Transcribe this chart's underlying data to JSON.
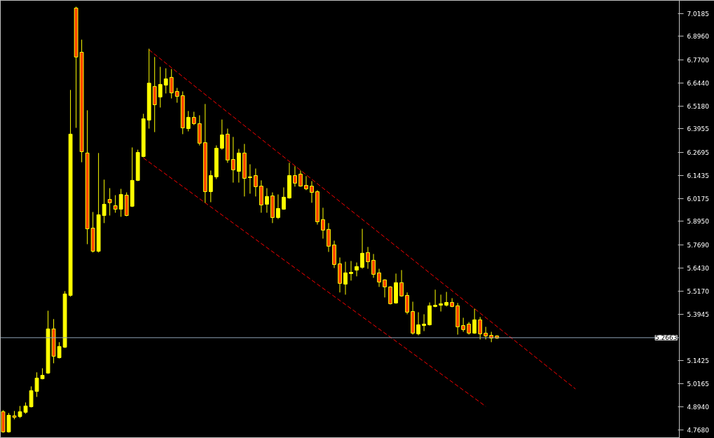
{
  "chart_data": {
    "type": "candlestick",
    "categories": [
      null,
      null,
      null,
      null,
      null,
      null,
      null,
      null,
      null,
      null,
      null,
      null,
      null,
      null,
      null,
      null,
      null,
      null,
      null,
      null,
      null,
      null,
      null,
      null,
      null,
      null,
      null,
      null,
      null,
      null,
      null,
      null,
      null,
      null,
      null,
      null,
      null,
      null,
      null,
      null,
      null,
      null,
      null,
      null,
      null,
      null,
      null,
      null,
      null,
      null,
      null,
      null,
      null,
      null,
      null,
      null,
      null,
      null,
      null,
      null,
      null,
      null,
      null,
      null,
      null,
      null,
      null,
      null,
      null,
      null,
      null,
      null,
      null,
      null,
      null,
      null,
      null,
      null,
      null,
      null,
      null,
      null,
      null,
      null,
      null,
      null,
      null,
      null,
      null,
      null,
      null,
      null,
      null,
      null,
      null,
      null,
      null,
      null,
      null,
      null,
      null,
      null,
      null,
      null,
      null,
      null,
      null,
      null,
      null,
      null,
      null,
      null,
      null,
      null,
      null,
      null,
      null,
      null,
      null,
      null,
      null
    ],
    "ohlc": [
      [
        4.866,
        4.874,
        4.753,
        4.757
      ],
      [
        4.757,
        4.859,
        4.753,
        4.847
      ],
      [
        4.844,
        4.87,
        4.825,
        4.836
      ],
      [
        4.84,
        4.897,
        4.832,
        4.866
      ],
      [
        4.863,
        4.916,
        4.855,
        4.897
      ],
      [
        4.893,
        5.003,
        4.889,
        4.98
      ],
      [
        4.976,
        5.079,
        4.946,
        5.048
      ],
      [
        5.044,
        5.101,
        5.041,
        5.063
      ],
      [
        5.075,
        5.412,
        5.071,
        5.314
      ],
      [
        5.314,
        5.367,
        5.128,
        5.166
      ],
      [
        5.158,
        5.242,
        5.154,
        5.219
      ],
      [
        5.215,
        5.518,
        5.211,
        5.503
      ],
      [
        5.495,
        6.606,
        5.488,
        6.367
      ],
      [
        7.049,
        7.056,
        6.401,
        6.784
      ],
      [
        6.81,
        6.878,
        6.215,
        6.272
      ],
      [
        6.265,
        6.496,
        5.772,
        5.855
      ],
      [
        5.859,
        5.946,
        5.727,
        5.734
      ],
      [
        5.734,
        6.265,
        5.727,
        5.931
      ],
      [
        5.927,
        6.121,
        5.886,
        5.988
      ],
      [
        6.014,
        6.075,
        5.927,
        5.996
      ],
      [
        5.98,
        6.037,
        5.942,
        5.961
      ],
      [
        5.961,
        6.071,
        5.92,
        6.041
      ],
      [
        6.037,
        6.052,
        5.923,
        5.927
      ],
      [
        5.977,
        6.295,
        5.973,
        6.117
      ],
      [
        6.117,
        6.283,
        6.113,
        6.268
      ],
      [
        6.246,
        6.477,
        6.242,
        6.45
      ],
      [
        6.443,
        6.829,
        6.397,
        6.643
      ],
      [
        6.625,
        6.784,
        6.378,
        6.526
      ],
      [
        6.568,
        6.731,
        6.511,
        6.636
      ],
      [
        6.632,
        6.723,
        6.587,
        6.666
      ],
      [
        6.674,
        6.719,
        6.56,
        6.59
      ],
      [
        6.598,
        6.617,
        6.537,
        6.571
      ],
      [
        6.575,
        6.598,
        6.367,
        6.401
      ],
      [
        6.397,
        6.492,
        6.382,
        6.458
      ],
      [
        6.458,
        6.488,
        6.416,
        6.424
      ],
      [
        6.424,
        6.469,
        6.306,
        6.318
      ],
      [
        6.321,
        6.53,
        5.996,
        6.056
      ],
      [
        6.056,
        6.17,
        5.999,
        6.143
      ],
      [
        6.136,
        6.306,
        6.124,
        6.291
      ],
      [
        6.291,
        6.446,
        6.283,
        6.363
      ],
      [
        6.367,
        6.397,
        6.212,
        6.227
      ],
      [
        6.23,
        6.352,
        6.105,
        6.174
      ],
      [
        6.166,
        6.287,
        6.105,
        6.265
      ],
      [
        6.265,
        6.314,
        6.03,
        6.128
      ],
      [
        6.132,
        6.204,
        6.045,
        6.136
      ],
      [
        6.143,
        6.181,
        6.03,
        6.083
      ],
      [
        6.086,
        6.117,
        5.942,
        5.984
      ],
      [
        5.988,
        6.075,
        5.942,
        6.03
      ],
      [
        6.033,
        6.052,
        5.886,
        5.916
      ],
      [
        5.916,
        6.041,
        5.908,
        5.965
      ],
      [
        5.961,
        6.079,
        5.958,
        6.026
      ],
      [
        6.022,
        6.212,
        6.018,
        6.143
      ],
      [
        6.143,
        6.193,
        6.083,
        6.102
      ],
      [
        6.151,
        6.17,
        6.083,
        6.086
      ],
      [
        6.09,
        6.14,
        6.064,
        6.071
      ],
      [
        6.086,
        6.113,
        5.996,
        6.052
      ],
      [
        6.056,
        6.064,
        5.878,
        5.893
      ],
      [
        5.905,
        5.969,
        5.802,
        5.848
      ],
      [
        5.852,
        5.886,
        5.73,
        5.761
      ],
      [
        5.768,
        5.791,
        5.643,
        5.662
      ],
      [
        5.666,
        5.7,
        5.511,
        5.56
      ],
      [
        5.556,
        5.677,
        5.499,
        5.617
      ],
      [
        5.613,
        5.681,
        5.575,
        5.62
      ],
      [
        5.632,
        5.673,
        5.598,
        5.651
      ],
      [
        5.647,
        5.855,
        5.639,
        5.723
      ],
      [
        5.727,
        5.757,
        5.639,
        5.677
      ],
      [
        5.685,
        5.719,
        5.59,
        5.609
      ],
      [
        5.617,
        5.639,
        5.541,
        5.567
      ],
      [
        5.579,
        5.582,
        5.484,
        5.541
      ],
      [
        5.541,
        5.545,
        5.446,
        5.45
      ],
      [
        5.454,
        5.613,
        5.45,
        5.564
      ],
      [
        5.564,
        5.632,
        5.488,
        5.492
      ],
      [
        5.495,
        5.511,
        5.393,
        5.404
      ],
      [
        5.408,
        5.461,
        5.283,
        5.291
      ],
      [
        5.287,
        5.404,
        5.279,
        5.336
      ],
      [
        5.332,
        5.393,
        5.302,
        5.34
      ],
      [
        5.336,
        5.457,
        5.332,
        5.439
      ],
      [
        5.435,
        5.526,
        5.431,
        5.442
      ],
      [
        5.442,
        5.499,
        5.408,
        5.45
      ],
      [
        5.442,
        5.514,
        5.435,
        5.457
      ],
      [
        5.457,
        5.48,
        5.431,
        5.435
      ],
      [
        5.439,
        5.454,
        5.283,
        5.325
      ],
      [
        5.332,
        5.374,
        5.298,
        5.31
      ],
      [
        5.34,
        5.351,
        5.283,
        5.291
      ],
      [
        5.291,
        5.423,
        5.287,
        5.363
      ],
      [
        5.363,
        5.378,
        5.257,
        5.287
      ],
      [
        5.291,
        5.325,
        5.257,
        5.276
      ],
      [
        5.279,
        5.298,
        5.242,
        5.264
      ],
      [
        5.276,
        5.279,
        5.26,
        5.264
      ],
      null,
      null,
      null,
      null,
      null,
      null,
      null,
      null,
      null,
      null,
      null,
      null,
      null,
      null,
      null,
      null,
      null,
      null,
      null,
      null,
      null,
      null,
      null,
      null,
      null,
      null,
      null,
      null,
      null,
      null,
      null,
      null
    ],
    "colors": [
      "#ff4500",
      "#ffff00",
      "#ff4500",
      "#ffff00",
      "#ffff00",
      "#ffff00",
      "#ffff00",
      "#ffff00",
      "#ffff00",
      "#ff4500",
      "#ffff00",
      "#ffff00",
      "#ffff00",
      "#ff4500",
      "#ff4500",
      "#ff4500",
      "#ff4500",
      "#ffff00",
      "#ffff00",
      "#ff4500",
      "#ff4500",
      "#ffff00",
      "#ff4500",
      "#ffff00",
      "#ffff00",
      "#ffff00",
      "#ffff00",
      "#ff4500",
      "#ffff00",
      "#ffff00",
      "#ff4500",
      "#ff4500",
      "#ff4500",
      "#ffff00",
      "#ff4500",
      "#ff4500",
      "#ff4500",
      "#ffff00",
      "#ffff00",
      "#ffff00",
      "#ff4500",
      "#ff4500",
      "#ffff00",
      "#ff4500",
      "#ffff00",
      "#ff4500",
      "#ff4500",
      "#ffff00",
      "#ff4500",
      "#ffff00",
      "#ffff00",
      "#ffff00",
      "#ff4500",
      "#ff4500",
      "#ff4500",
      "#ff4500",
      "#ff4500",
      "#ff4500",
      "#ff4500",
      "#ff4500",
      "#ff4500",
      "#ffff00",
      "#ffff00",
      "#ffff00",
      "#ffff00",
      "#ff4500",
      "#ff4500",
      "#ff4500",
      "#ff4500",
      "#ff4500",
      "#ffff00",
      "#ff4500",
      "#ff4500",
      "#ff4500",
      "#ffff00",
      "#ffff00",
      "#ffff00",
      "#ffff00",
      "#ffff00",
      "#ffff00",
      "#ff4500",
      "#ff4500",
      "#ff4500",
      "#ff4500",
      "#ffff00",
      "#ff4500",
      "#ff4500",
      "#ff4500",
      "#ff4500",
      null,
      null,
      null,
      null,
      null,
      null,
      null,
      null,
      null,
      null,
      null,
      null,
      null,
      null,
      null,
      null,
      null,
      null,
      null,
      null,
      null,
      null,
      null,
      null,
      null,
      null,
      null,
      null,
      null,
      null,
      null,
      null
    ],
    "series": [
      {
        "type": "line",
        "values": [
          null,
          null,
          null,
          null,
          null,
          null,
          null,
          null,
          null,
          null,
          null,
          null,
          null,
          null,
          null,
          null,
          null,
          null,
          null,
          null,
          null,
          null,
          null,
          null,
          null,
          null,
          6.823,
          null,
          null,
          null,
          null,
          null,
          null,
          null,
          null,
          null,
          null,
          null,
          null,
          null,
          null,
          null,
          null,
          null,
          null,
          null,
          null,
          null,
          null,
          null,
          null,
          null,
          null,
          null,
          null,
          null,
          null,
          null,
          null,
          null,
          null,
          null,
          null,
          null,
          null,
          null,
          null,
          null,
          null,
          null,
          null,
          null,
          null,
          null,
          null,
          null,
          null,
          null,
          null,
          null,
          null,
          null,
          null,
          null,
          null,
          null,
          null,
          null,
          null,
          null,
          null,
          null,
          null,
          null,
          null,
          null,
          null,
          null,
          null,
          null,
          null,
          null,
          4.989,
          null,
          null,
          null,
          null,
          null,
          null,
          null,
          null,
          null,
          null,
          null,
          null,
          null,
          null,
          null,
          null,
          null,
          null
        ],
        "color": "#ff0000",
        "line_style": "dashed"
      },
      {
        "type": "line",
        "values": [
          null,
          null,
          null,
          null,
          null,
          null,
          null,
          null,
          null,
          null,
          null,
          null,
          null,
          null,
          null,
          null,
          null,
          null,
          null,
          null,
          null,
          null,
          null,
          null,
          null,
          6.238,
          null,
          null,
          null,
          null,
          null,
          null,
          null,
          null,
          null,
          null,
          null,
          null,
          null,
          null,
          null,
          null,
          null,
          null,
          null,
          null,
          null,
          null,
          null,
          null,
          null,
          null,
          null,
          null,
          null,
          null,
          null,
          null,
          null,
          null,
          null,
          null,
          null,
          null,
          null,
          null,
          null,
          null,
          null,
          null,
          null,
          null,
          null,
          null,
          null,
          null,
          null,
          null,
          null,
          null,
          null,
          null,
          null,
          null,
          null,
          null,
          4.895,
          null,
          null,
          null,
          null,
          null,
          null,
          null,
          null,
          null,
          null,
          null,
          null,
          null,
          null,
          null,
          null,
          null,
          null,
          null,
          null,
          null,
          null,
          null,
          null,
          null,
          null,
          null,
          null,
          null,
          null,
          null,
          null,
          null,
          null
        ],
        "color": "#ff0000",
        "line_style": "dashed"
      }
    ],
    "ref_lines": [
      {
        "axis": "y",
        "value": 5.2663,
        "label": "5.2663",
        "color": "#8fa3b8"
      }
    ],
    "ylim": [
      4.722,
      7.0905
    ],
    "yticks": [
      {
        "value": 4.768,
        "label": "4.7680"
      },
      {
        "value": 4.894,
        "label": "4.8940"
      },
      {
        "value": 5.0165,
        "label": "5.0165"
      },
      {
        "value": 5.1425,
        "label": "5.1425"
      },
      {
        "value": 5.3945,
        "label": "5.3945"
      },
      {
        "value": 5.517,
        "label": "5.5170"
      },
      {
        "value": 5.643,
        "label": "5.6430"
      },
      {
        "value": 5.769,
        "label": "5.7690"
      },
      {
        "value": 5.895,
        "label": "5.8950"
      },
      {
        "value": 6.0175,
        "label": "6.0175"
      },
      {
        "value": 6.1435,
        "label": "6.1435"
      },
      {
        "value": 6.2695,
        "label": "6.2695"
      },
      {
        "value": 6.3955,
        "label": "6.3955"
      },
      {
        "value": 6.518,
        "label": "6.5180"
      },
      {
        "value": 6.644,
        "label": "6.6440"
      },
      {
        "value": 6.77,
        "label": "6.7700"
      },
      {
        "value": 6.896,
        "label": "6.8960"
      },
      {
        "value": 7.0185,
        "label": "7.0185"
      }
    ],
    "tick_labels": "y",
    "grid": false
  }
}
